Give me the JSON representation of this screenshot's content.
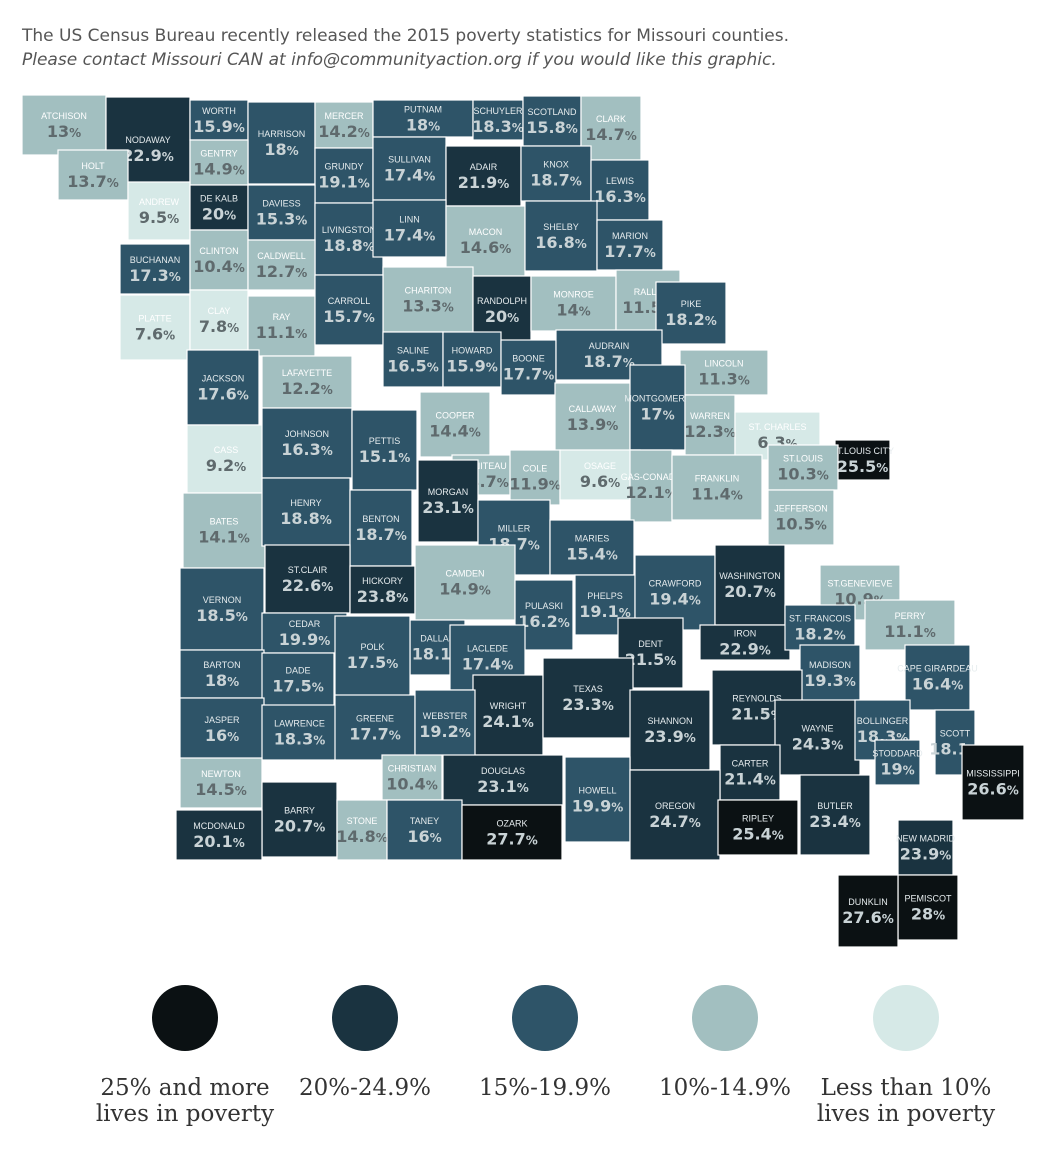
{
  "header": {
    "line1": "The US Census Bureau recently released the 2015 poverty statistics for Missouri counties.",
    "line2": "Please contact Missouri CAN at info@communityaction.org if you would like this graphic."
  },
  "colors": {
    "c25": "#0b1113",
    "c20": "#1a3340",
    "c15": "#2e5468",
    "c10": "#a2bfc0",
    "c0": "#d6e9e7",
    "border": "#ffffff"
  },
  "legend": [
    {
      "key": "c25",
      "label": "25% and more\nlives in poverty"
    },
    {
      "key": "c20",
      "label": "20%-24.9%"
    },
    {
      "key": "c15",
      "label": "15%-19.9%"
    },
    {
      "key": "c10",
      "label": "10%-14.9%"
    },
    {
      "key": "c0",
      "label": "Less than 10%\nlives in poverty"
    }
  ],
  "counties": [
    {
      "name": "ATCHISON",
      "value": "13"
    },
    {
      "name": "NODAWAY",
      "value": "22.9"
    },
    {
      "name": "WORTH",
      "value": "15.9"
    },
    {
      "name": "HARRISON",
      "value": "18"
    },
    {
      "name": "MERCER",
      "value": "14.2"
    },
    {
      "name": "PUTNAM",
      "value": "18"
    },
    {
      "name": "SCHUYLER",
      "value": "18.3"
    },
    {
      "name": "SCOTLAND",
      "value": "15.8"
    },
    {
      "name": "CLARK",
      "value": "14.7"
    },
    {
      "name": "HOLT",
      "value": "13.7"
    },
    {
      "name": "GENTRY",
      "value": "14.9"
    },
    {
      "name": "GRUNDY",
      "value": "19.1"
    },
    {
      "name": "SULLIVAN",
      "value": "17.4"
    },
    {
      "name": "ADAIR",
      "value": "21.9"
    },
    {
      "name": "KNOX",
      "value": "18.7"
    },
    {
      "name": "LEWIS",
      "value": "16.3"
    },
    {
      "name": "ANDREW",
      "value": "9.5"
    },
    {
      "name": "DE KALB",
      "value": "20"
    },
    {
      "name": "DAVIESS",
      "value": "15.3"
    },
    {
      "name": "LIVINGSTON",
      "value": "18.8"
    },
    {
      "name": "LINN",
      "value": "17.4"
    },
    {
      "name": "MACON",
      "value": "14.6"
    },
    {
      "name": "SHELBY",
      "value": "16.8"
    },
    {
      "name": "MARION",
      "value": "17.7"
    },
    {
      "name": "BUCHANAN",
      "value": "17.3"
    },
    {
      "name": "CLINTON",
      "value": "10.4"
    },
    {
      "name": "CALDWELL",
      "value": "12.7"
    },
    {
      "name": "CHARITON",
      "value": "13.3"
    },
    {
      "name": "RANDOLPH",
      "value": "20"
    },
    {
      "name": "MONROE",
      "value": "14"
    },
    {
      "name": "RALLS",
      "value": "11.5"
    },
    {
      "name": "PLATTE",
      "value": "7.6"
    },
    {
      "name": "CLAY",
      "value": "7.8"
    },
    {
      "name": "RAY",
      "value": "11.1"
    },
    {
      "name": "CARROLL",
      "value": "15.7"
    },
    {
      "name": "PIKE",
      "value": "18.2"
    },
    {
      "name": "SALINE",
      "value": "16.5"
    },
    {
      "name": "HOWARD",
      "value": "15.9"
    },
    {
      "name": "BOONE",
      "value": "17.7"
    },
    {
      "name": "AUDRAIN",
      "value": "18.7"
    },
    {
      "name": "LINCOLN",
      "value": "11.3"
    },
    {
      "name": "JACKSON",
      "value": "17.6"
    },
    {
      "name": "LAFAYETTE",
      "value": "12.2"
    },
    {
      "name": "COOPER",
      "value": "14.4"
    },
    {
      "name": "CALLAWAY",
      "value": "13.9"
    },
    {
      "name": "MONTGOMERY",
      "value": "17"
    },
    {
      "name": "WARREN",
      "value": "12.3"
    },
    {
      "name": "ST. CHARLES",
      "value": "6.3"
    },
    {
      "name": "ST.LOUIS CITY",
      "value": "25.5"
    },
    {
      "name": "CASS",
      "value": "9.2"
    },
    {
      "name": "JOHNSON",
      "value": "16.3"
    },
    {
      "name": "PETTIS",
      "value": "15.1"
    },
    {
      "name": "MONITEAU",
      "value": "14.7"
    },
    {
      "name": "COLE",
      "value": "11.9"
    },
    {
      "name": "OSAGE",
      "value": "9.6"
    },
    {
      "name": "GAS-CONADE",
      "value": "12.1"
    },
    {
      "name": "FRANKLIN",
      "value": "11.4"
    },
    {
      "name": "ST.LOUIS",
      "value": "10.3"
    },
    {
      "name": "JEFFERSON",
      "value": "10.5"
    },
    {
      "name": "BATES",
      "value": "14.1"
    },
    {
      "name": "HENRY",
      "value": "18.8"
    },
    {
      "name": "BENTON",
      "value": "18.7"
    },
    {
      "name": "MORGAN",
      "value": "23.1"
    },
    {
      "name": "MILLER",
      "value": "18.7"
    },
    {
      "name": "MARIES",
      "value": "15.4"
    },
    {
      "name": "ST.CLAIR",
      "value": "22.6"
    },
    {
      "name": "HICKORY",
      "value": "23.8"
    },
    {
      "name": "CAMDEN",
      "value": "14.9"
    },
    {
      "name": "PHELPS",
      "value": "19.1"
    },
    {
      "name": "CRAWFORD",
      "value": "19.4"
    },
    {
      "name": "WASHINGTON",
      "value": "20.7"
    },
    {
      "name": "ST.GENEVIEVE",
      "value": "10.9"
    },
    {
      "name": "VERNON",
      "value": "18.5"
    },
    {
      "name": "CEDAR",
      "value": "19.9"
    },
    {
      "name": "PULASKI",
      "value": "16.2"
    },
    {
      "name": "DALLAS",
      "value": "18.1"
    },
    {
      "name": "LACLEDE",
      "value": "17.4"
    },
    {
      "name": "DENT",
      "value": "21.5"
    },
    {
      "name": "IRON",
      "value": "22.9"
    },
    {
      "name": "ST. FRANCOIS",
      "value": "18.2"
    },
    {
      "name": "PERRY",
      "value": "11.1"
    },
    {
      "name": "BARTON",
      "value": "18"
    },
    {
      "name": "POLK",
      "value": "17.5"
    },
    {
      "name": "DADE",
      "value": "17.5"
    },
    {
      "name": "MADISON",
      "value": "19.3"
    },
    {
      "name": "CAPE GIRARDEAU",
      "value": "16.4"
    },
    {
      "name": "WRIGHT",
      "value": "24.1"
    },
    {
      "name": "TEXAS",
      "value": "23.3"
    },
    {
      "name": "REYNOLDS",
      "value": "21.5"
    },
    {
      "name": "JASPER",
      "value": "16"
    },
    {
      "name": "LAWRENCE",
      "value": "18.3"
    },
    {
      "name": "GREENE",
      "value": "17.7"
    },
    {
      "name": "WEBSTER",
      "value": "19.2"
    },
    {
      "name": "SHANNON",
      "value": "23.9"
    },
    {
      "name": "WAYNE",
      "value": "24.3"
    },
    {
      "name": "BOLLINGER",
      "value": "18.3"
    },
    {
      "name": "SCOTT",
      "value": "18.1"
    },
    {
      "name": "NEWTON",
      "value": "14.5"
    },
    {
      "name": "CHRISTIAN",
      "value": "10.4"
    },
    {
      "name": "DOUGLAS",
      "value": "23.1"
    },
    {
      "name": "HOWELL",
      "value": "19.9"
    },
    {
      "name": "CARTER",
      "value": "21.4"
    },
    {
      "name": "STODDARD",
      "value": "19"
    },
    {
      "name": "MISSISSIPPI",
      "value": "26.6"
    },
    {
      "name": "BARRY",
      "value": "20.7"
    },
    {
      "name": "STONE",
      "value": "14.8"
    },
    {
      "name": "TANEY",
      "value": "16"
    },
    {
      "name": "OZARK",
      "value": "27.7"
    },
    {
      "name": "OREGON",
      "value": "24.7"
    },
    {
      "name": "RIPLEY",
      "value": "25.4"
    },
    {
      "name": "BUTLER",
      "value": "23.4"
    },
    {
      "name": "NEW MADRID",
      "value": "23.9"
    },
    {
      "name": "McDONALD",
      "value": "20.1"
    },
    {
      "name": "PEMISCOT",
      "value": "28"
    },
    {
      "name": "DUNKLIN",
      "value": "27.6"
    }
  ]
}
